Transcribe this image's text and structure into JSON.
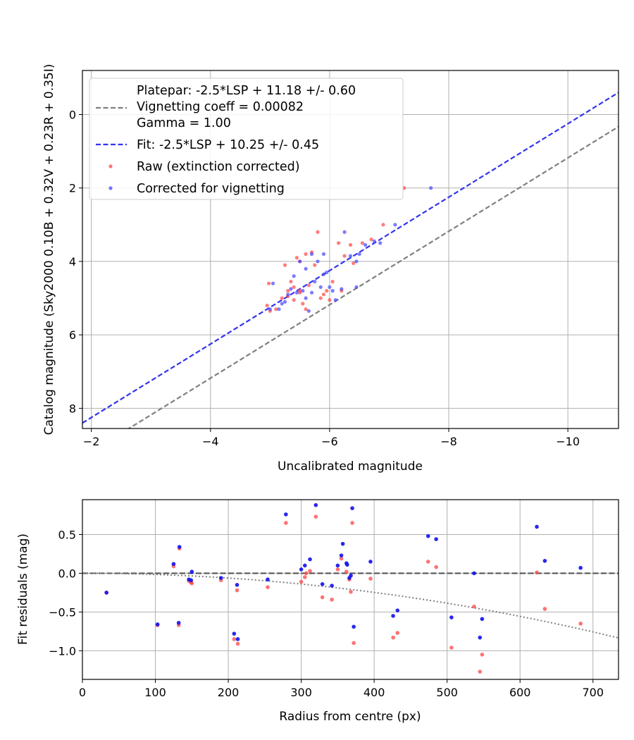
{
  "chart_data": [
    {
      "type": "scatter",
      "xlabel": "Uncalibrated magnitude",
      "ylabel": "Catalog magnitude (Sky2000 0.10B + 0.32V + 0.23R + 0.35I)",
      "xlim": [
        -1.85,
        -10.85
      ],
      "ylim": [
        8.55,
        -1.2
      ],
      "x_ticks": [
        -2,
        -4,
        -6,
        -8,
        -10
      ],
      "y_ticks": [
        0,
        2,
        4,
        6,
        8
      ],
      "grid": true,
      "legend_position": "top-left",
      "colors": {
        "platepar": "#808080",
        "fit": "#3333ee",
        "raw": "#ff4444",
        "corrected": "#4444ff"
      },
      "legend": {
        "platepar_lines": [
          "Platepar: -2.5*LSP + 11.18 +/- 0.60",
          "Vignetting coeff = 0.00082",
          "Gamma = 1.00"
        ],
        "fit": "Fit: -2.5*LSP + 10.25 +/- 0.45",
        "raw": "Raw (extinction corrected)",
        "corrected": "Corrected for vignetting"
      },
      "lines": [
        {
          "name": "platepar",
          "slope": 1.0,
          "intercept": 11.18,
          "style": "dashed"
        },
        {
          "name": "fit",
          "slope": 1.0,
          "intercept": 10.25,
          "style": "dashed"
        }
      ],
      "series": [
        {
          "name": "Raw (extinction corrected)",
          "points": [
            [
              -4.95,
              5.2
            ],
            [
              -5.0,
              5.35
            ],
            [
              -4.98,
              4.6
            ],
            [
              -5.1,
              5.3
            ],
            [
              -5.2,
              5.0
            ],
            [
              -5.25,
              4.1
            ],
            [
              -5.3,
              4.8
            ],
            [
              -5.35,
              4.55
            ],
            [
              -5.4,
              5.05
            ],
            [
              -5.45,
              3.9
            ],
            [
              -5.5,
              4.0
            ],
            [
              -5.5,
              4.8
            ],
            [
              -5.55,
              5.15
            ],
            [
              -5.6,
              5.3
            ],
            [
              -5.6,
              3.8
            ],
            [
              -5.65,
              4.65
            ],
            [
              -5.7,
              3.75
            ],
            [
              -5.75,
              4.1
            ],
            [
              -5.8,
              3.2
            ],
            [
              -5.85,
              5.0
            ],
            [
              -5.5,
              4.85
            ],
            [
              -5.4,
              4.7
            ],
            [
              -5.9,
              4.9
            ],
            [
              -5.95,
              4.8
            ],
            [
              -6.0,
              5.05
            ],
            [
              -6.05,
              4.55
            ],
            [
              -6.2,
              4.8
            ],
            [
              -6.25,
              3.85
            ],
            [
              -6.35,
              3.55
            ],
            [
              -6.4,
              4.05
            ],
            [
              -6.55,
              3.5
            ],
            [
              -6.7,
              3.4
            ],
            [
              -6.9,
              3.0
            ],
            [
              -6.15,
              3.5
            ],
            [
              -7.25,
              2.0
            ],
            [
              -5.3,
              4.95
            ]
          ]
        },
        {
          "name": "Corrected for vignetting",
          "points": [
            [
              -5.0,
              5.3
            ],
            [
              -5.05,
              4.6
            ],
            [
              -5.15,
              5.3
            ],
            [
              -5.2,
              5.15
            ],
            [
              -5.3,
              4.9
            ],
            [
              -5.35,
              4.75
            ],
            [
              -5.4,
              4.4
            ],
            [
              -5.45,
              4.85
            ],
            [
              -5.5,
              4.0
            ],
            [
              -5.55,
              4.8
            ],
            [
              -5.6,
              5.0
            ],
            [
              -5.65,
              5.35
            ],
            [
              -5.7,
              3.8
            ],
            [
              -5.75,
              4.55
            ],
            [
              -5.8,
              4.0
            ],
            [
              -5.85,
              4.7
            ],
            [
              -5.9,
              3.8
            ],
            [
              -5.95,
              4.3
            ],
            [
              -6.0,
              4.7
            ],
            [
              -6.05,
              4.8
            ],
            [
              -6.1,
              5.05
            ],
            [
              -6.2,
              4.75
            ],
            [
              -6.25,
              3.2
            ],
            [
              -6.35,
              3.85
            ],
            [
              -6.45,
              4.0
            ],
            [
              -6.5,
              3.8
            ],
            [
              -6.6,
              3.55
            ],
            [
              -6.75,
              3.45
            ],
            [
              -6.85,
              3.5
            ],
            [
              -7.1,
              3.0
            ],
            [
              -7.7,
              2.0
            ],
            [
              -6.45,
              4.7
            ],
            [
              -5.6,
              4.2
            ],
            [
              -5.9,
              4.35
            ],
            [
              -5.25,
              5.1
            ],
            [
              -5.7,
              4.85
            ]
          ]
        }
      ]
    },
    {
      "type": "scatter",
      "xlabel": "Radius from centre (px)",
      "ylabel": "Fit residuals (mag)",
      "xlim": [
        0,
        735
      ],
      "ylim": [
        -1.37,
        0.95
      ],
      "x_ticks": [
        0,
        100,
        200,
        300,
        400,
        500,
        600,
        700
      ],
      "y_ticks": [
        0.5,
        0.0,
        -0.5,
        -1.0
      ],
      "y_tick_labels": [
        "0.5",
        "0.0",
        "−0.5",
        "−1.0"
      ],
      "grid": true,
      "colors": {
        "raw": "#ff4444",
        "corrected": "#1111ee",
        "zero": "#555555",
        "model": "#808080"
      },
      "zero_line": 0.0,
      "vignetting_coeff": 0.00082,
      "series": [
        {
          "name": "raw",
          "points": [
            [
              33,
              -0.25
            ],
            [
              103,
              -0.67
            ],
            [
              125,
              0.09
            ],
            [
              133,
              0.32
            ],
            [
              132,
              -0.67
            ],
            [
              146,
              -0.1
            ],
            [
              149,
              -0.12
            ],
            [
              150,
              -0.13
            ],
            [
              190,
              -0.09
            ],
            [
              208,
              -0.85
            ],
            [
              212,
              -0.22
            ],
            [
              213,
              -0.91
            ],
            [
              254,
              -0.18
            ],
            [
              279,
              0.65
            ],
            [
              300,
              -0.11
            ],
            [
              305,
              -0.05
            ],
            [
              307,
              0.0
            ],
            [
              312,
              0.03
            ],
            [
              320,
              0.73
            ],
            [
              329,
              -0.31
            ],
            [
              342,
              -0.34
            ],
            [
              350,
              0.05
            ],
            [
              355,
              0.19
            ],
            [
              362,
              0.02
            ],
            [
              366,
              -0.08
            ],
            [
              368,
              -0.24
            ],
            [
              370,
              0.65
            ],
            [
              372,
              -0.9
            ],
            [
              395,
              -0.07
            ],
            [
              426,
              -0.83
            ],
            [
              432,
              -0.77
            ],
            [
              474,
              0.15
            ],
            [
              485,
              0.08
            ],
            [
              506,
              -0.96
            ],
            [
              537,
              -0.43
            ],
            [
              545,
              -1.27
            ],
            [
              548,
              -1.05
            ],
            [
              623,
              0.01
            ],
            [
              634,
              -0.46
            ],
            [
              683,
              -0.65
            ]
          ]
        },
        {
          "name": "corrected",
          "points": [
            [
              33,
              -0.25
            ],
            [
              103,
              -0.66
            ],
            [
              125,
              0.12
            ],
            [
              133,
              0.34
            ],
            [
              132,
              -0.64
            ],
            [
              146,
              -0.08
            ],
            [
              149,
              -0.09
            ],
            [
              150,
              0.02
            ],
            [
              190,
              -0.06
            ],
            [
              208,
              -0.78
            ],
            [
              212,
              -0.15
            ],
            [
              213,
              -0.85
            ],
            [
              254,
              -0.08
            ],
            [
              279,
              0.76
            ],
            [
              300,
              0.05
            ],
            [
              305,
              0.1
            ],
            [
              312,
              0.18
            ],
            [
              320,
              0.88
            ],
            [
              329,
              -0.14
            ],
            [
              342,
              -0.16
            ],
            [
              350,
              0.1
            ],
            [
              355,
              0.23
            ],
            [
              357,
              0.38
            ],
            [
              362,
              0.13
            ],
            [
              363,
              0.11
            ],
            [
              366,
              -0.06
            ],
            [
              368,
              -0.03
            ],
            [
              370,
              0.84
            ],
            [
              372,
              -0.69
            ],
            [
              395,
              0.15
            ],
            [
              426,
              -0.55
            ],
            [
              432,
              -0.48
            ],
            [
              474,
              0.48
            ],
            [
              485,
              0.44
            ],
            [
              506,
              -0.57
            ],
            [
              537,
              0.0
            ],
            [
              545,
              -0.83
            ],
            [
              548,
              -0.59
            ],
            [
              623,
              0.6
            ],
            [
              634,
              0.16
            ],
            [
              683,
              0.07
            ]
          ]
        }
      ]
    }
  ]
}
